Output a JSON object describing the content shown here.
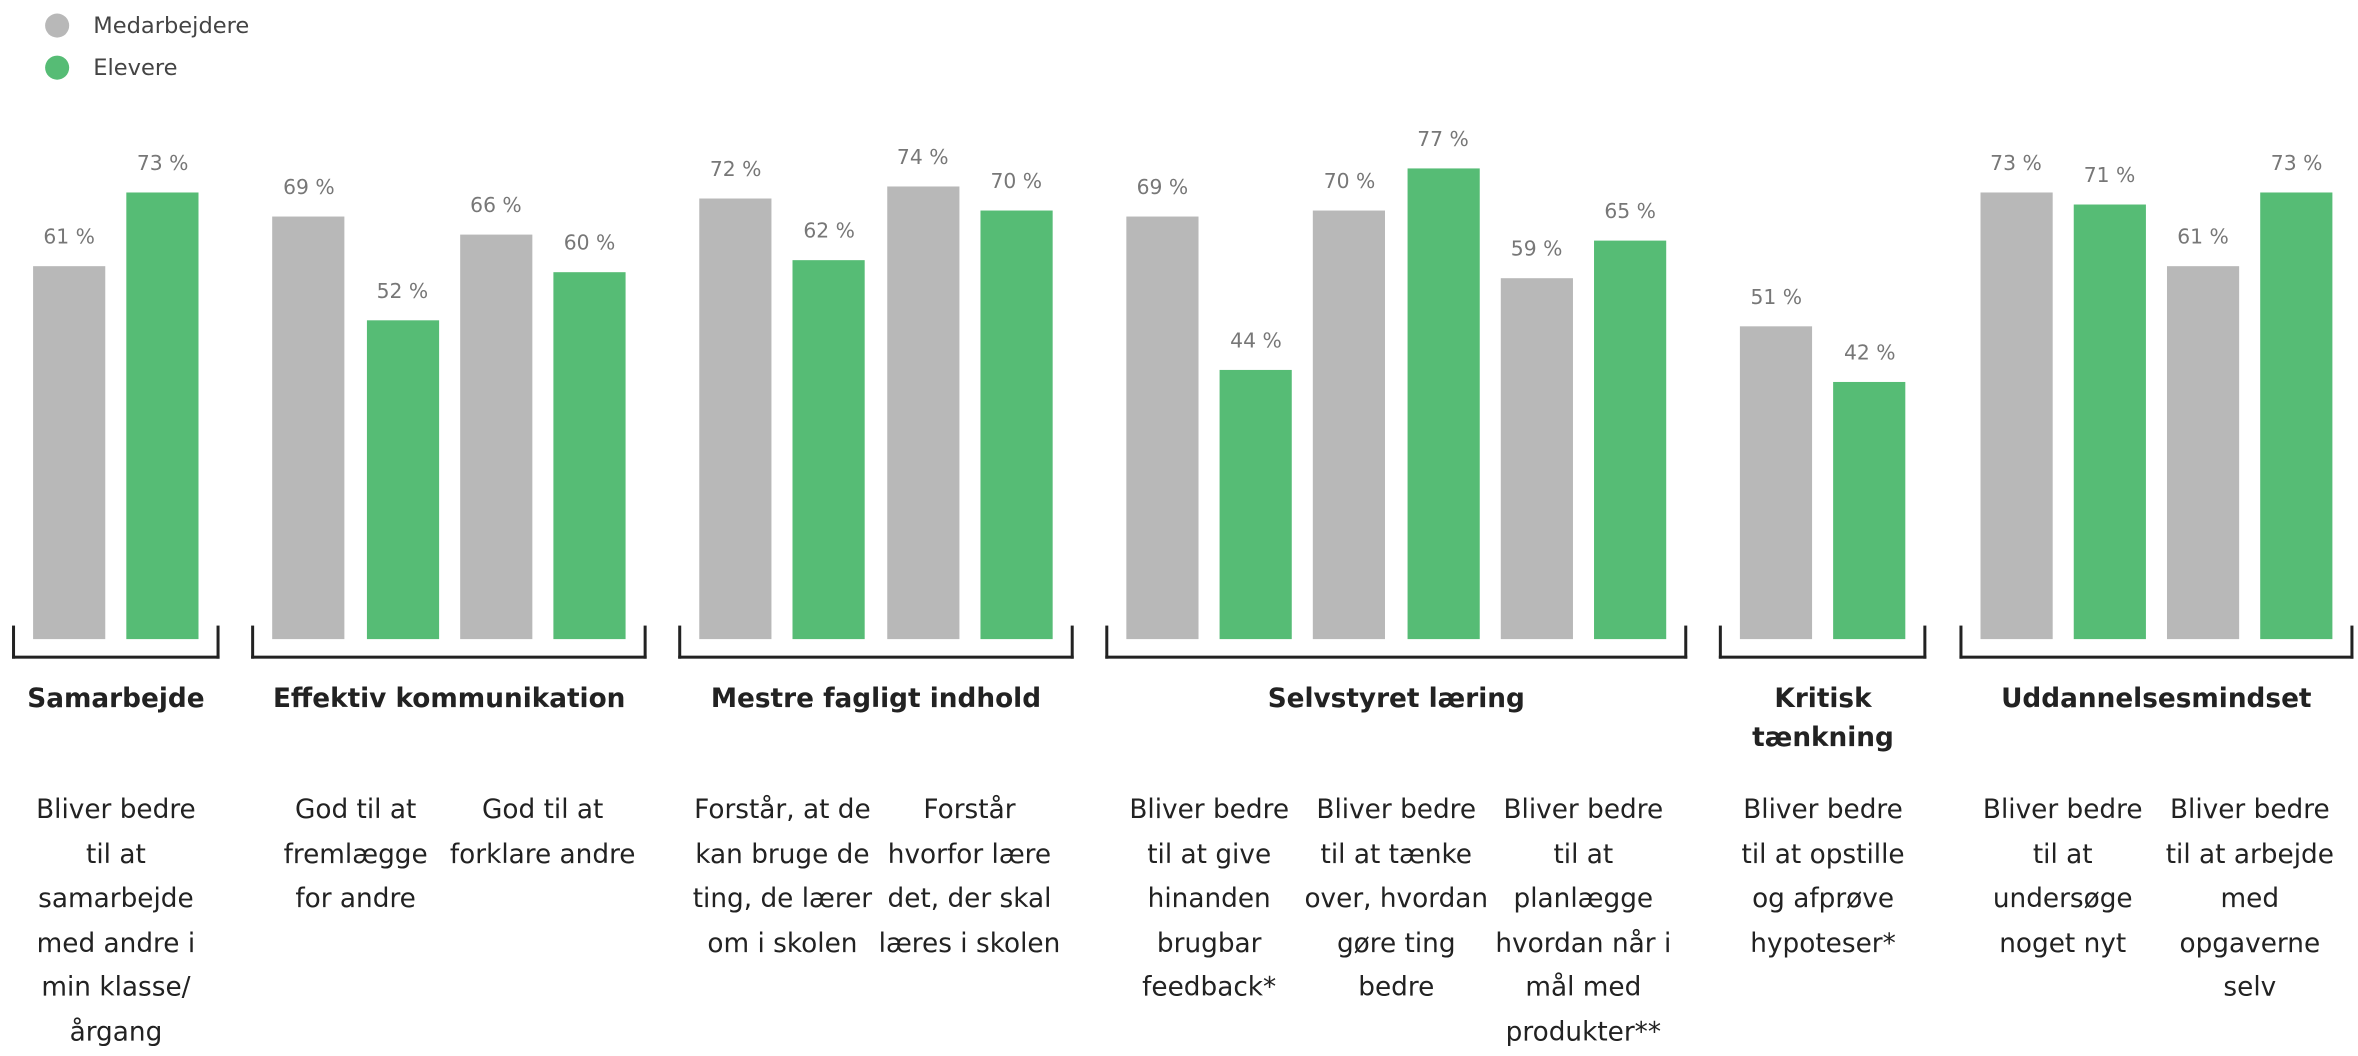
{
  "chart_data": {
    "type": "bar",
    "series": [
      {
        "name": "Medarbejdere",
        "color": "#b8b8b8",
        "values": [
          61,
          69,
          66,
          72,
          74,
          69,
          70,
          59,
          51,
          73,
          61
        ],
        "value_labels": [
          "61 %",
          "69 %",
          "66 %",
          "72 %",
          "74 %",
          "69 %",
          "70 %",
          "59 %",
          "51 %",
          "73 %",
          "61 %"
        ]
      },
      {
        "name": "Elevere",
        "color": "#56bc75",
        "values": [
          73,
          52,
          60,
          62,
          70,
          44,
          77,
          65,
          42,
          71,
          73
        ],
        "value_labels": [
          "73 %",
          "52 %",
          "60 %",
          "62 %",
          "70 %",
          "44 %",
          "77 %",
          "65 %",
          "42 %",
          "71 %",
          "73 %"
        ]
      }
    ],
    "groups": [
      {
        "title": "Samarbejde",
        "categories": [
          "Bliver bedre til at samarbejde med andre i min klasse/ årgang"
        ]
      },
      {
        "title": "Effektiv kommunikation",
        "categories": [
          "God til at fremlægge for andre",
          "God til at forklare andre"
        ]
      },
      {
        "title": "Mestre fagligt indhold",
        "categories": [
          "Forstår, at de kan bruge de ting, de lærer om i skolen",
          "Forstår hvorfor lære det, der skal læres i skolen"
        ]
      },
      {
        "title": "Selvstyret læring",
        "categories": [
          "Bliver bedre til at give hinanden brugbar feedback*",
          "Bliver bedre til at tænke over, hvordan gøre ting bedre",
          "Bliver bedre til at planlægge hvordan når i mål med produkter**"
        ]
      },
      {
        "title": "Kritisk tænkning",
        "categories": [
          "Bliver bedre til at opstille og afprøve hypoteser*"
        ]
      },
      {
        "title": "Uddannelsesmindset",
        "categories": [
          "Bliver bedre til at undersøge noget nyt",
          "Bliver bedre til at arbejde med opgaverne selv"
        ]
      }
    ]
  }
}
